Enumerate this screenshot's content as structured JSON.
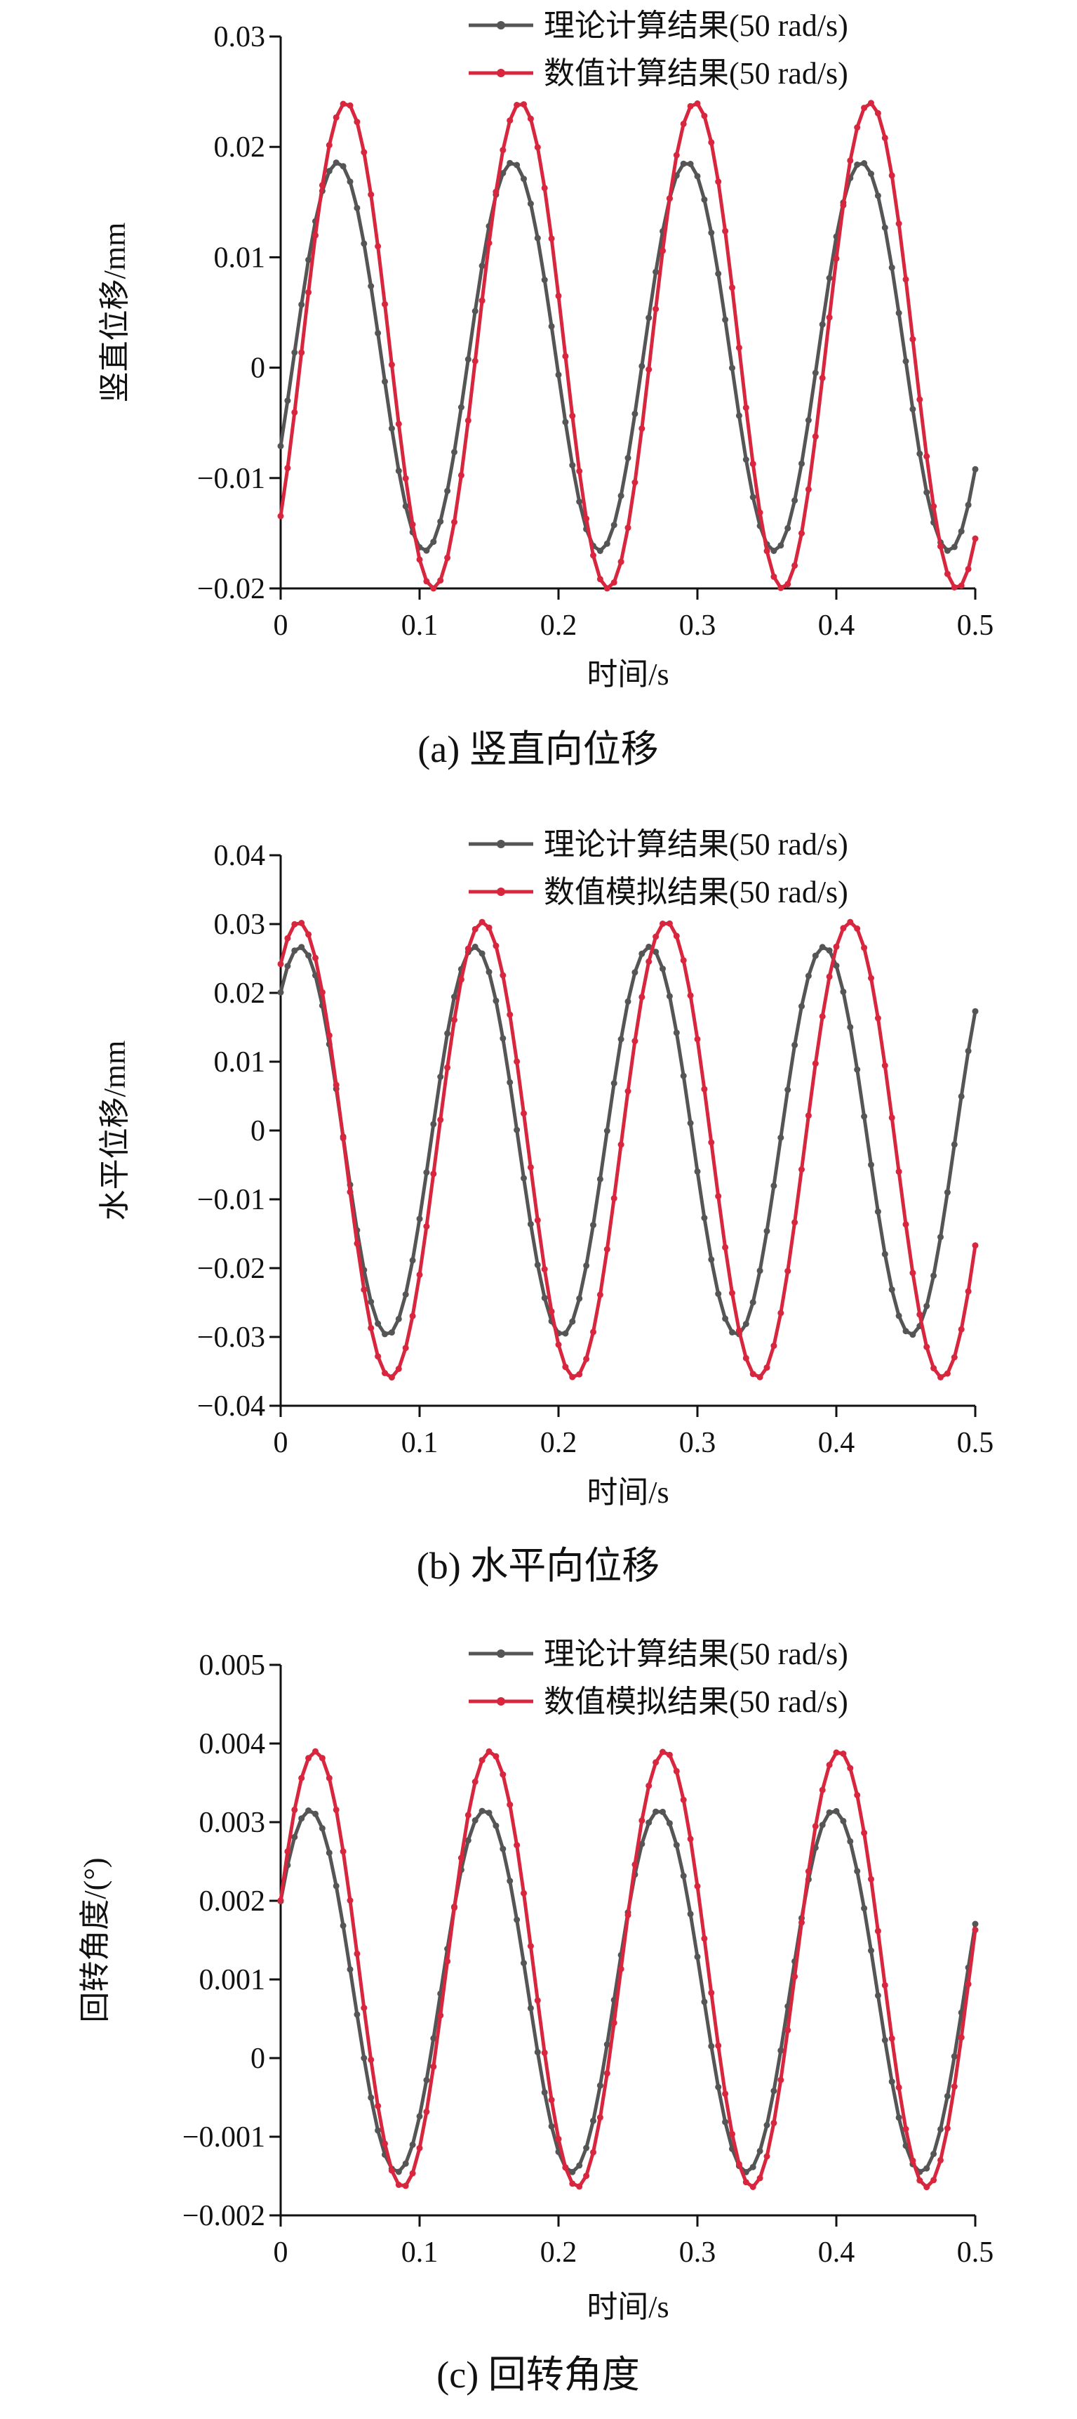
{
  "chart_data": [
    {
      "type": "line",
      "id": "a",
      "caption": "(a) 竖直向位移",
      "xlabel": "时间/s",
      "ylabel": "竖直位移/mm",
      "xlim": [
        0,
        0.5
      ],
      "ylim": [
        -0.02,
        0.03
      ],
      "xticks": [
        "0",
        "0.1",
        "0.2",
        "0.3",
        "0.4",
        "0.5"
      ],
      "yticks": [
        "0.03",
        "0.02",
        "0.01",
        "0",
        "−0.01",
        "−0.02"
      ],
      "xtick_values": [
        0,
        0.1,
        0.2,
        0.3,
        0.4,
        0.5
      ],
      "ytick_values": [
        0.03,
        0.02,
        0.01,
        0,
        -0.01,
        -0.02
      ],
      "legend_position": "top-right",
      "grid": false,
      "series": [
        {
          "name": "理论计算结果(50 rad/s)",
          "color": "#555555",
          "x_start": 0,
          "x_end": 0.5,
          "x_step": 0.005,
          "center": 0.001,
          "amplitude": 0.0176,
          "period": 0.1257,
          "peak_at": 0.041
        },
        {
          "name": "数值计算结果(50 rad/s)",
          "color": "#d7263d",
          "x_start": 0,
          "x_end": 0.5,
          "x_step": 0.005,
          "center": 0.002,
          "amplitude": 0.022,
          "period": 0.1257,
          "peak_at": 0.047
        }
      ]
    },
    {
      "type": "line",
      "id": "b",
      "caption": "(b) 水平向位移",
      "xlabel": "时间/s",
      "ylabel": "水平位移/mm",
      "xlim": [
        0,
        0.5
      ],
      "ylim": [
        -0.04,
        0.04
      ],
      "xticks": [
        "0",
        "0.1",
        "0.2",
        "0.3",
        "0.4",
        "0.5"
      ],
      "yticks": [
        "0.04",
        "0.03",
        "0.02",
        "0.01",
        "0",
        "−0.01",
        "−0.02",
        "−0.03",
        "−0.04"
      ],
      "xtick_values": [
        0,
        0.1,
        0.2,
        0.3,
        0.4,
        0.5
      ],
      "ytick_values": [
        0.04,
        0.03,
        0.02,
        0.01,
        0,
        -0.01,
        -0.02,
        -0.03,
        -0.04
      ],
      "legend_position": "top-right",
      "grid": false,
      "series": [
        {
          "name": "理论计算结果(50 rad/s)",
          "color": "#555555",
          "x_start": 0,
          "x_end": 0.5,
          "x_step": 0.005,
          "center": -0.0015,
          "amplitude": 0.0282,
          "period": 0.1257,
          "peak_at": 0.014
        },
        {
          "name": "数值模拟结果(50 rad/s)",
          "color": "#d7263d",
          "x_start": 0,
          "x_end": 0.5,
          "x_step": 0.005,
          "center": -0.0028,
          "amplitude": 0.0331,
          "period": 0.1323,
          "peak_at": 0.013
        }
      ]
    },
    {
      "type": "line",
      "id": "c",
      "caption": "(c) 回转角度",
      "xlabel": "时间/s",
      "ylabel": "回转角度/(°)",
      "xlim": [
        0,
        0.5
      ],
      "ylim": [
        -0.002,
        0.005
      ],
      "xticks": [
        "0",
        "0.1",
        "0.2",
        "0.3",
        "0.4",
        "0.5"
      ],
      "yticks": [
        "0.005",
        "0.004",
        "0.003",
        "0.002",
        "0.001",
        "0",
        "−0.001",
        "−0.002"
      ],
      "xtick_values": [
        0,
        0.1,
        0.2,
        0.3,
        0.4,
        0.5
      ],
      "ytick_values": [
        0.005,
        0.004,
        0.003,
        0.002,
        0.001,
        0,
        -0.001,
        -0.002
      ],
      "legend_position": "top-right",
      "grid": false,
      "series": [
        {
          "name": "理论计算结果(50 rad/s)",
          "color": "#555555",
          "x_start": 0,
          "x_end": 0.5,
          "x_step": 0.005,
          "center": 0.00085,
          "amplitude": 0.0023,
          "period": 0.1257,
          "peak_at": 0.021
        },
        {
          "name": "数值模拟结果(50 rad/s)",
          "color": "#d7263d",
          "x_start": 0,
          "x_end": 0.5,
          "x_step": 0.005,
          "center": 0.00113,
          "amplitude": 0.00277,
          "period": 0.1257,
          "peak_at": 0.025
        }
      ]
    }
  ]
}
